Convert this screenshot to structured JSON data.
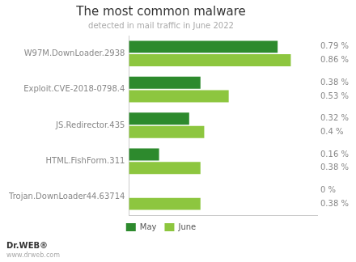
{
  "chart_data": {
    "type": "bar",
    "orientation": "horizontal",
    "title": "The most common malware",
    "subtitle": "detected in mail traffic in June 2022",
    "categories": [
      "W97M.DownLoader.2938",
      "Exploit.CVE-2018-0798.4",
      "JS.Redirector.435",
      "HTML.FishForm.311",
      "Trojan.DownLoader44.63714"
    ],
    "series": [
      {
        "name": "May",
        "color": "#2d8a2d",
        "values": [
          0.79,
          0.38,
          0.32,
          0.16,
          0.0
        ],
        "value_labels": [
          "0.79 %",
          "0.38 %",
          "0.32 %",
          "0.16 %",
          "0 %"
        ]
      },
      {
        "name": "June",
        "color": "#8dc63f",
        "values": [
          0.86,
          0.53,
          0.4,
          0.38,
          0.38
        ],
        "value_labels": [
          "0.86 %",
          "0.53 %",
          "0.4 %",
          "0.38 %",
          "0.38 %"
        ]
      }
    ],
    "xlim": [
      0,
      1.0
    ],
    "tick_labels": "y",
    "grid": false,
    "legend": "bottom",
    "data_labels": true,
    "annotations": [
      "Dr.WEB®",
      "www.drweb.com"
    ]
  }
}
